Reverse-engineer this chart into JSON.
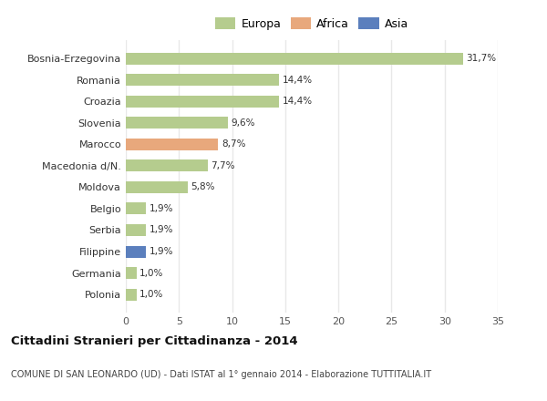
{
  "categories": [
    "Polonia",
    "Germania",
    "Filippine",
    "Serbia",
    "Belgio",
    "Moldova",
    "Macedonia d/N.",
    "Marocco",
    "Slovenia",
    "Croazia",
    "Romania",
    "Bosnia-Erzegovina"
  ],
  "values": [
    1.0,
    1.0,
    1.9,
    1.9,
    1.9,
    5.8,
    7.7,
    8.7,
    9.6,
    14.4,
    14.4,
    31.7
  ],
  "colors": [
    "#b5cc8e",
    "#b5cc8e",
    "#5b7fbd",
    "#b5cc8e",
    "#b5cc8e",
    "#b5cc8e",
    "#b5cc8e",
    "#e8a87c",
    "#b5cc8e",
    "#b5cc8e",
    "#b5cc8e",
    "#b5cc8e"
  ],
  "labels": [
    "1,0%",
    "1,0%",
    "1,9%",
    "1,9%",
    "1,9%",
    "5,8%",
    "7,7%",
    "8,7%",
    "9,6%",
    "14,4%",
    "14,4%",
    "31,7%"
  ],
  "legend": [
    {
      "label": "Europa",
      "color": "#b5cc8e"
    },
    {
      "label": "Africa",
      "color": "#e8a87c"
    },
    {
      "label": "Asia",
      "color": "#5b7fbd"
    }
  ],
  "xlim": [
    0,
    35
  ],
  "xticks": [
    0,
    5,
    10,
    15,
    20,
    25,
    30,
    35
  ],
  "title": "Cittadini Stranieri per Cittadinanza - 2014",
  "subtitle": "COMUNE DI SAN LEONARDO (UD) - Dati ISTAT al 1° gennaio 2014 - Elaborazione TUTTITALIA.IT",
  "background_color": "#ffffff",
  "grid_color": "#e8e8e8",
  "bar_height": 0.55
}
